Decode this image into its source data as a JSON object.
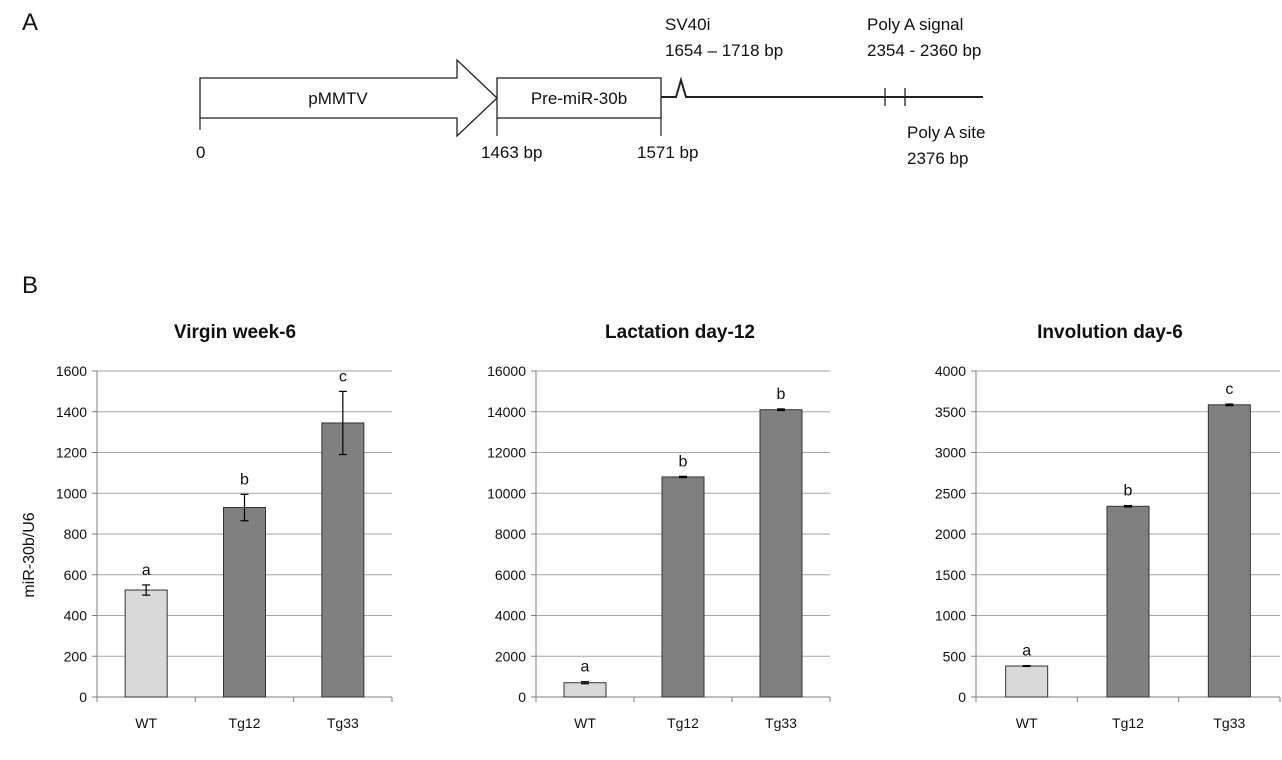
{
  "panel_a": {
    "label": "A",
    "promoter": "pMMTV",
    "insert": "Pre-miR-30b",
    "start": "0",
    "insert_start": "1463 bp",
    "insert_end": "1571 bp",
    "intron_name": "SV40i",
    "intron_range": "1654 – 1718 bp",
    "polya_signal_name": "Poly A signal",
    "polya_signal_range": "2354 - 2360 bp",
    "polya_site_name": "Poly A site",
    "polya_site_pos": "2376 bp"
  },
  "panel_b": {
    "label": "B",
    "ylabel": "miR-30b/U6"
  },
  "colors": {
    "wt_bar": "#d9d9d9",
    "tg_bar": "#808080",
    "grid": "#a6a6a6",
    "axis": "#7f7f7f",
    "bar_edge": "#333333"
  },
  "chart_data": [
    {
      "type": "bar",
      "title": "Virgin week-6",
      "categories": [
        "WT",
        "Tg12",
        "Tg33"
      ],
      "values": [
        525,
        930,
        1345
      ],
      "errors": [
        25,
        65,
        155
      ],
      "letters": [
        "a",
        "b",
        "c"
      ],
      "ylim": [
        0,
        1600
      ],
      "yticks": [
        "0",
        "200",
        "400",
        "600",
        "800",
        "1000",
        "1200",
        "1400",
        "1600"
      ],
      "ylabel": "miR-30b/U6",
      "grid": true
    },
    {
      "type": "bar",
      "title": "Lactation day-12",
      "categories": [
        "WT",
        "Tg12",
        "Tg33"
      ],
      "values": [
        700,
        10800,
        14100
      ],
      "errors": [
        50,
        30,
        40
      ],
      "letters": [
        "a",
        "b",
        "b"
      ],
      "ylim": [
        0,
        16000
      ],
      "yticks": [
        "0",
        "2000",
        "4000",
        "6000",
        "8000",
        "10000",
        "12000",
        "14000",
        "16000"
      ],
      "ylabel": "",
      "grid": true
    },
    {
      "type": "bar",
      "title": "Involution day-6",
      "categories": [
        "WT",
        "Tg12",
        "Tg33"
      ],
      "values": [
        380,
        2340,
        3585
      ],
      "errors": [
        5,
        8,
        10
      ],
      "letters": [
        "a",
        "b",
        "c"
      ],
      "ylim": [
        0,
        4000
      ],
      "yticks": [
        "0",
        "500",
        "1000",
        "1500",
        "2000",
        "2500",
        "3000",
        "3500",
        "4000"
      ],
      "ylabel": "",
      "grid": true
    }
  ]
}
